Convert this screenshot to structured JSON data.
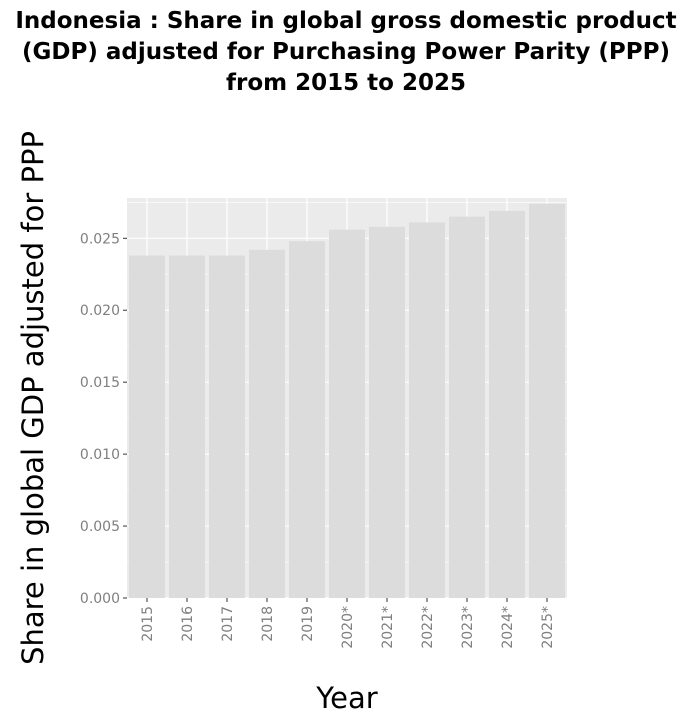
{
  "chart_data": {
    "type": "bar",
    "title": "Indonesia : Share in global gross domestic product (GDP) adjusted for Purchasing Power Parity (PPP) from 2015 to 2025",
    "xlabel": "Year",
    "ylabel": "Share in global GDP adjusted for PPP",
    "categories": [
      "2015",
      "2016",
      "2017",
      "2018",
      "2019",
      "2020*",
      "2021*",
      "2022*",
      "2023*",
      "2024*",
      "2025*"
    ],
    "values": [
      0.0238,
      0.0238,
      0.0238,
      0.0242,
      0.0248,
      0.0256,
      0.0258,
      0.0261,
      0.0265,
      0.0269,
      0.0274
    ],
    "ylim": [
      0,
      0.0278
    ],
    "yticks": [
      "0.000",
      "0.005",
      "0.010",
      "0.015",
      "0.020",
      "0.025"
    ],
    "grid": true,
    "colors": {
      "panel_background": "#ebebeb",
      "bar_fill": "#dcdcdc",
      "grid_line": "#ffffff",
      "tick_text": "#7f7f7f",
      "axis_tick": "#333333"
    }
  }
}
